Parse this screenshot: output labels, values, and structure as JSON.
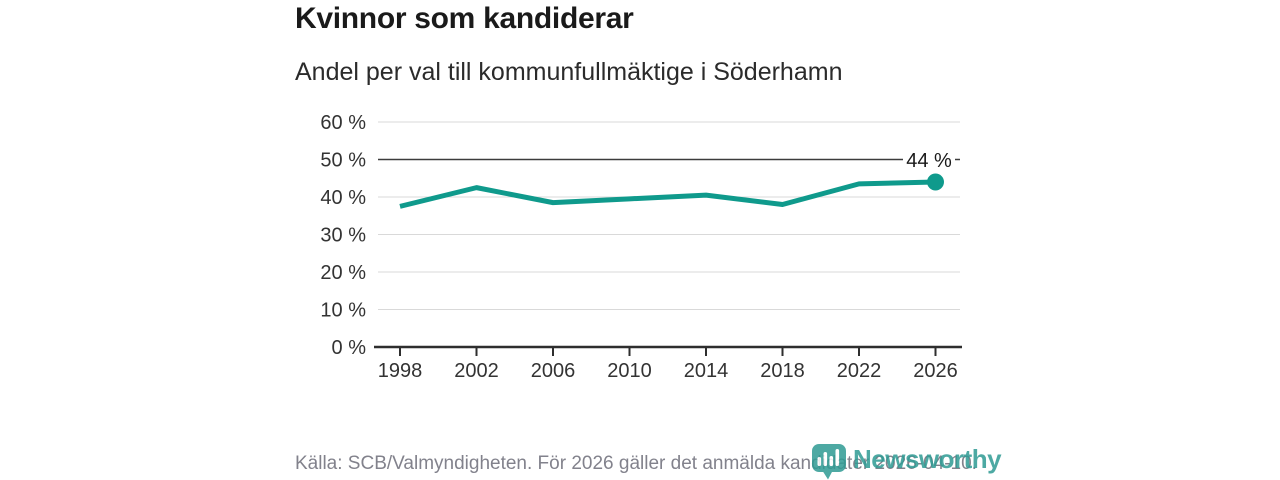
{
  "header": {
    "title": "Kvinnor som kandiderar",
    "subtitle": "Andel per val till kommunfullmäktige i Söderhamn"
  },
  "chart_data": {
    "type": "line",
    "title": "Kvinnor som kandiderar",
    "subtitle": "Andel per val till kommunfullmäktige i Söderhamn",
    "x": [
      1998,
      2002,
      2006,
      2010,
      2014,
      2018,
      2022,
      2026
    ],
    "x_tick_labels": [
      "1998",
      "2002",
      "2006",
      "2010",
      "2014",
      "2018",
      "2022",
      "2026"
    ],
    "series": [
      {
        "values": [
          37.5,
          42.5,
          38.5,
          39.5,
          40.5,
          38,
          43.5,
          44
        ]
      }
    ],
    "end_label": "44 %",
    "ylim": [
      0,
      60
    ],
    "y_tick_values": [
      0,
      10,
      20,
      30,
      40,
      50,
      60
    ],
    "y_tick_labels": [
      "0 %",
      "10 %",
      "20 %",
      "30 %",
      "40 %",
      "50 %",
      "60 %"
    ],
    "reference_line": 50,
    "grid": "horizontal",
    "legend": "none"
  },
  "colors": {
    "line": "#0f9a8c",
    "grid": "#d9d9d9",
    "reference_line": "#3c3c3c",
    "axis": "#2e2e2e",
    "tick_text": "#333333",
    "title_text": "#1a1a1a",
    "muted_text": "#82828c",
    "logo": "#2f9b94"
  },
  "footer": {
    "source": "Källa: SCB/Valmyndigheten. För 2026 gäller det anmälda kandidater 2026-04-10.",
    "logo_text": "Newsworthy"
  }
}
